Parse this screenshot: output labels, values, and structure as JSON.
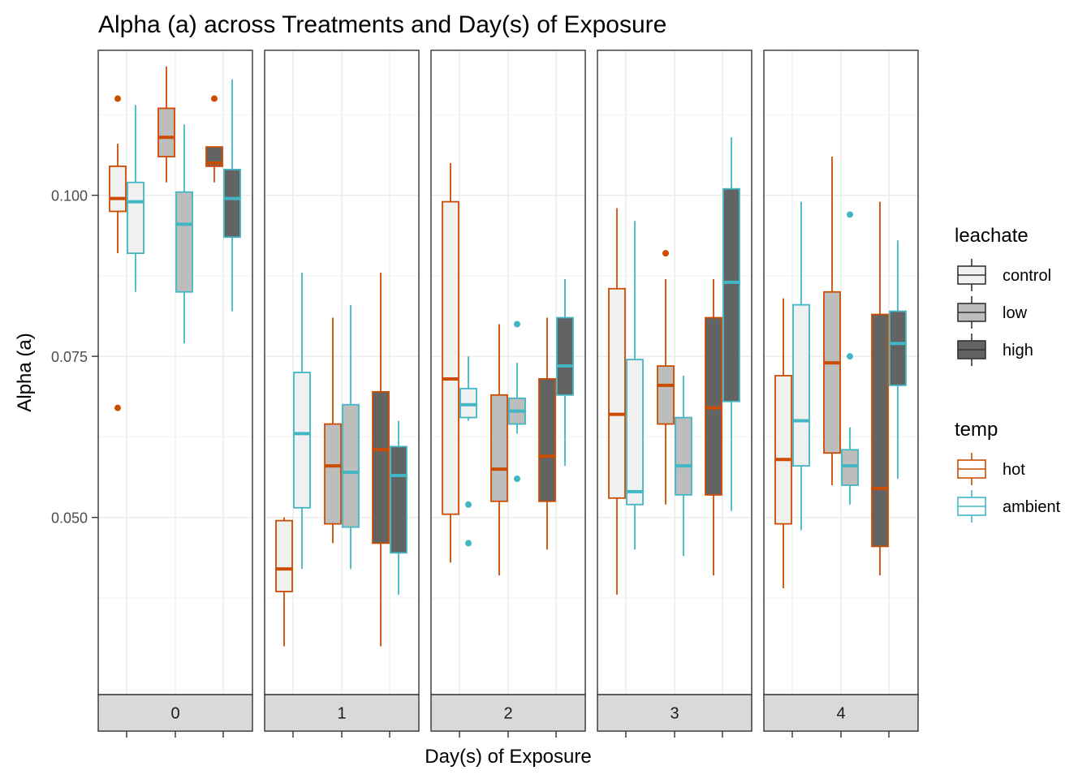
{
  "chart_data": {
    "type": "box",
    "title": "Alpha (a) across Treatments and Day(s) of Exposure",
    "xlabel": "Day(s) of Exposure",
    "ylabel": "Alpha (a)",
    "ylim": [
      0.0225,
      0.1225
    ],
    "yticks": [
      0.05,
      0.075,
      0.1
    ],
    "ytick_labels": [
      "0.050",
      "0.075",
      "0.100"
    ],
    "facets": [
      "0",
      "1",
      "2",
      "3",
      "4"
    ],
    "leachate_levels": [
      "control",
      "low",
      "high"
    ],
    "temp_levels": [
      "hot",
      "ambient"
    ],
    "legend": {
      "leachate": {
        "title": "leachate",
        "entries": [
          {
            "label": "control",
            "fill": "#f0f0f0"
          },
          {
            "label": "low",
            "fill": "#bdbdbd"
          },
          {
            "label": "high",
            "fill": "#636363"
          }
        ]
      },
      "temp": {
        "title": "temp",
        "entries": [
          {
            "label": "hot",
            "color": "#cc4c02"
          },
          {
            "label": "ambient",
            "color": "#41b6c4"
          }
        ]
      }
    },
    "colors": {
      "hot": "#cc4c02",
      "ambient": "#41b6c4",
      "control": "#f0f0f0",
      "low": "#bdbdbd",
      "high": "#636363"
    },
    "boxes": [
      {
        "day": "0",
        "leachate": "control",
        "temp": "hot",
        "lower": 0.091,
        "q1": 0.0975,
        "median": 0.0995,
        "q3": 0.1045,
        "upper": 0.108,
        "outliers": [
          0.115,
          0.067
        ]
      },
      {
        "day": "0",
        "leachate": "control",
        "temp": "ambient",
        "lower": 0.085,
        "q1": 0.091,
        "median": 0.099,
        "q3": 0.102,
        "upper": 0.114,
        "outliers": []
      },
      {
        "day": "0",
        "leachate": "low",
        "temp": "hot",
        "lower": 0.102,
        "q1": 0.106,
        "median": 0.109,
        "q3": 0.1135,
        "upper": 0.12,
        "outliers": []
      },
      {
        "day": "0",
        "leachate": "low",
        "temp": "ambient",
        "lower": 0.077,
        "q1": 0.085,
        "median": 0.0955,
        "q3": 0.1005,
        "upper": 0.111,
        "outliers": []
      },
      {
        "day": "0",
        "leachate": "high",
        "temp": "hot",
        "lower": 0.102,
        "q1": 0.1045,
        "median": 0.105,
        "q3": 0.1075,
        "upper": 0.1075,
        "outliers": [
          0.115
        ]
      },
      {
        "day": "0",
        "leachate": "high",
        "temp": "ambient",
        "lower": 0.082,
        "q1": 0.0935,
        "median": 0.0995,
        "q3": 0.104,
        "upper": 0.118,
        "outliers": []
      },
      {
        "day": "1",
        "leachate": "control",
        "temp": "hot",
        "lower": 0.03,
        "q1": 0.0385,
        "median": 0.042,
        "q3": 0.0495,
        "upper": 0.05,
        "outliers": []
      },
      {
        "day": "1",
        "leachate": "control",
        "temp": "ambient",
        "lower": 0.042,
        "q1": 0.0515,
        "median": 0.063,
        "q3": 0.0725,
        "upper": 0.088,
        "outliers": []
      },
      {
        "day": "1",
        "leachate": "low",
        "temp": "hot",
        "lower": 0.046,
        "q1": 0.049,
        "median": 0.058,
        "q3": 0.0645,
        "upper": 0.081,
        "outliers": []
      },
      {
        "day": "1",
        "leachate": "low",
        "temp": "ambient",
        "lower": 0.042,
        "q1": 0.0485,
        "median": 0.057,
        "q3": 0.0675,
        "upper": 0.083,
        "outliers": []
      },
      {
        "day": "1",
        "leachate": "high",
        "temp": "hot",
        "lower": 0.03,
        "q1": 0.046,
        "median": 0.0605,
        "q3": 0.0695,
        "upper": 0.088,
        "outliers": []
      },
      {
        "day": "1",
        "leachate": "high",
        "temp": "ambient",
        "lower": 0.038,
        "q1": 0.0445,
        "median": 0.0565,
        "q3": 0.061,
        "upper": 0.065,
        "outliers": []
      },
      {
        "day": "2",
        "leachate": "control",
        "temp": "hot",
        "lower": 0.043,
        "q1": 0.0505,
        "median": 0.0715,
        "q3": 0.099,
        "upper": 0.105,
        "outliers": []
      },
      {
        "day": "2",
        "leachate": "control",
        "temp": "ambient",
        "lower": 0.065,
        "q1": 0.0655,
        "median": 0.0675,
        "q3": 0.07,
        "upper": 0.075,
        "outliers": [
          0.052,
          0.046
        ]
      },
      {
        "day": "2",
        "leachate": "low",
        "temp": "hot",
        "lower": 0.041,
        "q1": 0.0525,
        "median": 0.0575,
        "q3": 0.069,
        "upper": 0.08,
        "outliers": []
      },
      {
        "day": "2",
        "leachate": "low",
        "temp": "ambient",
        "lower": 0.063,
        "q1": 0.0645,
        "median": 0.0665,
        "q3": 0.0685,
        "upper": 0.074,
        "outliers": [
          0.08,
          0.056
        ]
      },
      {
        "day": "2",
        "leachate": "high",
        "temp": "hot",
        "lower": 0.045,
        "q1": 0.0525,
        "median": 0.0595,
        "q3": 0.0715,
        "upper": 0.081,
        "outliers": []
      },
      {
        "day": "2",
        "leachate": "high",
        "temp": "ambient",
        "lower": 0.058,
        "q1": 0.069,
        "median": 0.0735,
        "q3": 0.081,
        "upper": 0.087,
        "outliers": []
      },
      {
        "day": "3",
        "leachate": "control",
        "temp": "hot",
        "lower": 0.038,
        "q1": 0.053,
        "median": 0.066,
        "q3": 0.0855,
        "upper": 0.098,
        "outliers": []
      },
      {
        "day": "3",
        "leachate": "control",
        "temp": "ambient",
        "lower": 0.045,
        "q1": 0.052,
        "median": 0.054,
        "q3": 0.0745,
        "upper": 0.096,
        "outliers": []
      },
      {
        "day": "3",
        "leachate": "low",
        "temp": "hot",
        "lower": 0.052,
        "q1": 0.0645,
        "median": 0.0705,
        "q3": 0.0735,
        "upper": 0.087,
        "outliers": [
          0.091
        ]
      },
      {
        "day": "3",
        "leachate": "low",
        "temp": "ambient",
        "lower": 0.044,
        "q1": 0.0535,
        "median": 0.058,
        "q3": 0.0655,
        "upper": 0.072,
        "outliers": []
      },
      {
        "day": "3",
        "leachate": "high",
        "temp": "hot",
        "lower": 0.041,
        "q1": 0.0535,
        "median": 0.067,
        "q3": 0.081,
        "upper": 0.087,
        "outliers": []
      },
      {
        "day": "3",
        "leachate": "high",
        "temp": "ambient",
        "lower": 0.051,
        "q1": 0.068,
        "median": 0.0865,
        "q3": 0.101,
        "upper": 0.109,
        "outliers": []
      },
      {
        "day": "4",
        "leachate": "control",
        "temp": "hot",
        "lower": 0.039,
        "q1": 0.049,
        "median": 0.059,
        "q3": 0.072,
        "upper": 0.084,
        "outliers": []
      },
      {
        "day": "4",
        "leachate": "control",
        "temp": "ambient",
        "lower": 0.048,
        "q1": 0.058,
        "median": 0.065,
        "q3": 0.083,
        "upper": 0.099,
        "outliers": []
      },
      {
        "day": "4",
        "leachate": "low",
        "temp": "hot",
        "lower": 0.055,
        "q1": 0.06,
        "median": 0.074,
        "q3": 0.085,
        "upper": 0.106,
        "outliers": []
      },
      {
        "day": "4",
        "leachate": "low",
        "temp": "ambient",
        "lower": 0.052,
        "q1": 0.055,
        "median": 0.058,
        "q3": 0.0605,
        "upper": 0.064,
        "outliers": [
          0.097,
          0.075
        ]
      },
      {
        "day": "4",
        "leachate": "high",
        "temp": "hot",
        "lower": 0.041,
        "q1": 0.0455,
        "median": 0.0545,
        "q3": 0.0815,
        "upper": 0.099,
        "outliers": []
      },
      {
        "day": "4",
        "leachate": "high",
        "temp": "ambient",
        "lower": 0.056,
        "q1": 0.0705,
        "median": 0.077,
        "q3": 0.082,
        "upper": 0.093,
        "outliers": []
      }
    ],
    "grid": true,
    "legend_position": "right"
  }
}
